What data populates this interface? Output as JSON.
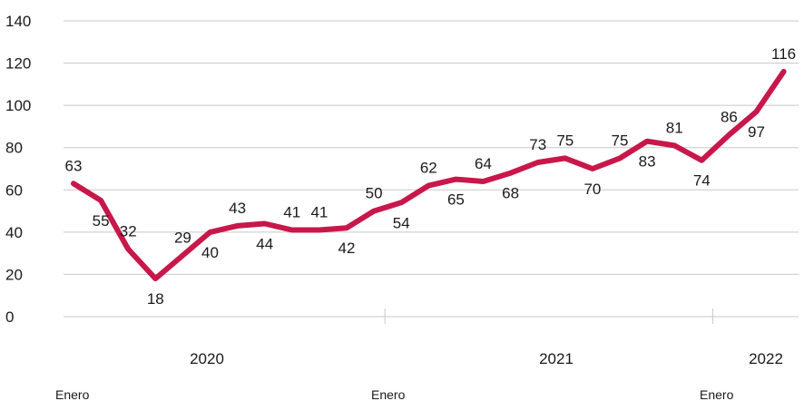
{
  "chart_data": {
    "type": "line",
    "title": "",
    "xlabel": "",
    "ylabel": "",
    "ylim": [
      0,
      140
    ],
    "yticks": [
      0,
      20,
      40,
      60,
      80,
      100,
      120,
      140
    ],
    "grid": true,
    "series_color": "#c8174a",
    "grid_color": "#c8c8c8",
    "values": [
      63,
      55,
      32,
      18,
      29,
      40,
      43,
      44,
      41,
      41,
      42,
      50,
      54,
      62,
      65,
      64,
      68,
      73,
      75,
      70,
      75,
      83,
      81,
      74,
      86,
      97,
      116
    ],
    "label_positions": [
      "above",
      "below",
      "above",
      "below",
      "above",
      "below",
      "above",
      "below",
      "above",
      "above",
      "below",
      "above",
      "below",
      "above",
      "below",
      "above",
      "below",
      "above",
      "above",
      "below",
      "above",
      "below",
      "above",
      "below",
      "above",
      "below",
      "above"
    ],
    "years": [
      {
        "label": "2020",
        "start_index": 0
      },
      {
        "label": "2021",
        "start_index": 12
      },
      {
        "label": "2022",
        "start_index": 24
      }
    ],
    "month_label": "Enero"
  }
}
